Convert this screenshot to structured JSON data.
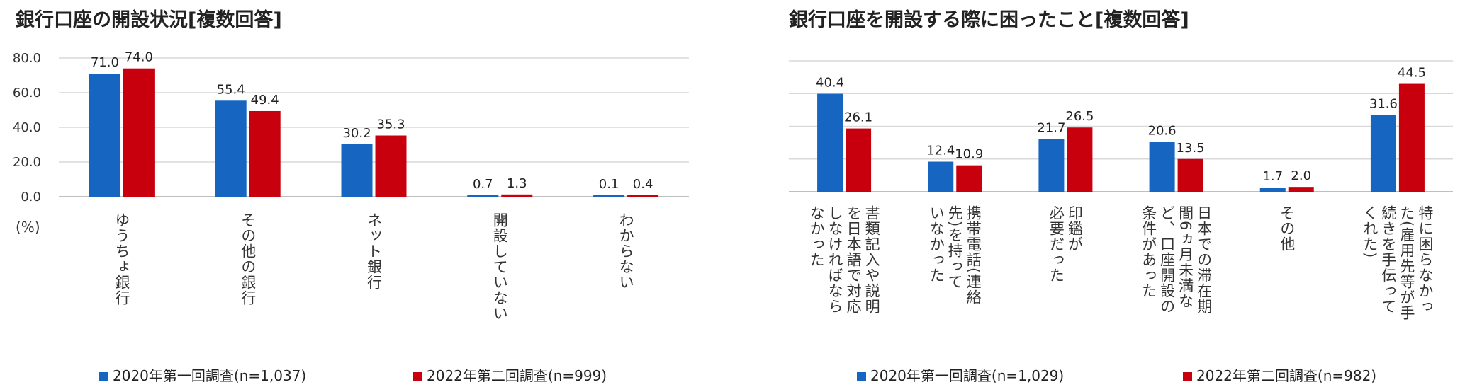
{
  "colors": {
    "series2020": "#1665c1",
    "series2022": "#c8000d",
    "grid": "#d9d9d9"
  },
  "chart_data": [
    {
      "type": "bar",
      "title": "銀行口座の開設状況[複数回答]",
      "unit_label": "(%)",
      "ylim": [
        0,
        80
      ],
      "yticks": [
        "80.0",
        "60.0",
        "40.0",
        "20.0",
        "0.0"
      ],
      "categories": [
        "ゆうちょ銀行",
        "その他の銀行",
        "ネット銀行",
        "開設していない",
        "わからない"
      ],
      "category_columns": [
        [
          "ゆうちょ銀行"
        ],
        [
          "その他の銀行"
        ],
        [
          "ネット銀行"
        ],
        [
          "開設していない"
        ],
        [
          "わからない"
        ]
      ],
      "series": [
        {
          "name": "2020年第一回調査(n=1,037)",
          "values": [
            71.0,
            55.4,
            30.2,
            0.7,
            0.1
          ],
          "labels": [
            "71.0",
            "55.4",
            "30.2",
            "0.7",
            "0.1"
          ]
        },
        {
          "name": "2022年第二回調査(n=999)",
          "values": [
            74.0,
            49.4,
            35.3,
            1.3,
            0.4
          ],
          "labels": [
            "74.0",
            "49.4",
            "35.3",
            "1.3",
            "0.4"
          ]
        }
      ],
      "grid": true,
      "legend": "bottom"
    },
    {
      "type": "bar",
      "title": "銀行口座を開設する際に困ったこと[複数回答]",
      "ylim": [
        0,
        54
      ],
      "categories": [
        "書類記入や説明を日本語で対応しなければならなかった",
        "携帯電話(連絡先)を持っていなかった",
        "印鑑が必要だった",
        "日本での滞在期間6ヵ月未満など、口座開設の条件があった",
        "その他",
        "特に困らなかった(雇用先等が手続きを手伝ってくれた)"
      ],
      "category_columns": [
        [
          "書類記入や説明",
          "を日本語で対応",
          "しなければなら",
          "なかった"
        ],
        [
          "携帯電話(連絡",
          "先)を持って",
          "いなかった"
        ],
        [
          "印鑑が",
          "必要だった"
        ],
        [
          "日本での滞在期",
          "間6ヵ月未満な",
          "ど、口座開設の",
          "条件があった"
        ],
        [
          "その他"
        ],
        [
          "特に困らなかっ",
          "た(雇用先等が手",
          "続きを手伝って",
          "くれた)"
        ]
      ],
      "series": [
        {
          "name": "2020年第一回調査(n=1,029)",
          "values": [
            40.4,
            12.4,
            21.7,
            20.6,
            1.7,
            31.6
          ],
          "labels": [
            "40.4",
            "12.4",
            "21.7",
            "20.6",
            "1.7",
            "31.6"
          ]
        },
        {
          "name": "2022年第二回調査(n=982)",
          "values": [
            26.1,
            10.9,
            26.5,
            13.5,
            2.0,
            44.5
          ],
          "labels": [
            "26.1",
            "10.9",
            "26.5",
            "13.5",
            "2.0",
            "44.5"
          ]
        }
      ],
      "grid": true,
      "legend": "bottom"
    }
  ]
}
